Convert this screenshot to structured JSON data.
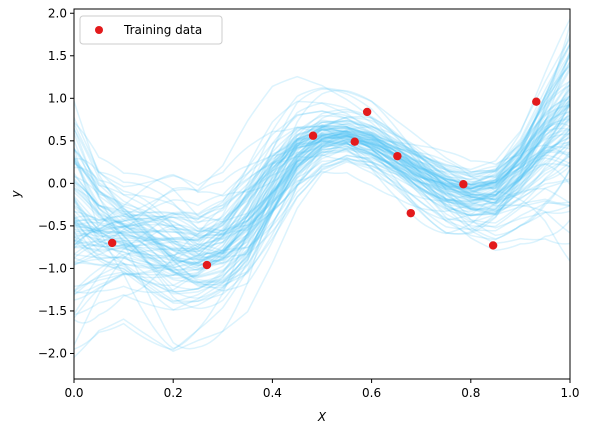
{
  "chart_data": {
    "type": "scatter",
    "xlabel": "X",
    "ylabel": "y",
    "xlim": [
      0.0,
      1.0
    ],
    "ylim": [
      -2.3,
      2.05
    ],
    "x_ticks": [
      0.0,
      0.2,
      0.4,
      0.6,
      0.8,
      1.0
    ],
    "x_tick_labels": [
      "0.0",
      "0.2",
      "0.4",
      "0.6",
      "0.8",
      "1.0"
    ],
    "y_ticks": [
      -2.0,
      -1.5,
      -1.0,
      -0.5,
      0.0,
      0.5,
      1.0,
      1.5,
      2.0
    ],
    "y_tick_labels": [
      "−2.0",
      "−1.5",
      "−1.0",
      "−0.5",
      "0.0",
      "0.5",
      "1.0",
      "1.5",
      "2.0"
    ],
    "grid": false,
    "legend": {
      "position": "top-left",
      "entries": [
        "Training data"
      ]
    },
    "series": [
      {
        "name": "Training data",
        "kind": "scatter",
        "color": "#e31a1c",
        "x": [
          0.077,
          0.268,
          0.482,
          0.566,
          0.591,
          0.652,
          0.679,
          0.785,
          0.845,
          0.932
        ],
        "y": [
          -0.7,
          -0.96,
          0.56,
          0.49,
          0.84,
          0.32,
          -0.35,
          -0.01,
          -0.73,
          0.96
        ]
      }
    ],
    "posterior_samples": {
      "kind": "line",
      "color": "#4fc3f7",
      "opacity": 0.2,
      "count": 100,
      "x": [
        0.0,
        0.05,
        0.1,
        0.15,
        0.2,
        0.25,
        0.3,
        0.35,
        0.4,
        0.45,
        0.5,
        0.55,
        0.6,
        0.65,
        0.7,
        0.75,
        0.8,
        0.85,
        0.9,
        0.95,
        1.0
      ],
      "mean": [
        -0.45,
        -0.62,
        -0.68,
        -0.78,
        -0.88,
        -0.92,
        -0.8,
        -0.5,
        -0.05,
        0.35,
        0.55,
        0.58,
        0.48,
        0.3,
        0.1,
        -0.08,
        -0.18,
        -0.15,
        0.1,
        0.45,
        0.7
      ],
      "spread": [
        0.6,
        0.4,
        0.32,
        0.35,
        0.38,
        0.33,
        0.35,
        0.4,
        0.38,
        0.3,
        0.22,
        0.18,
        0.18,
        0.18,
        0.2,
        0.22,
        0.22,
        0.24,
        0.28,
        0.4,
        0.55
      ]
    }
  }
}
